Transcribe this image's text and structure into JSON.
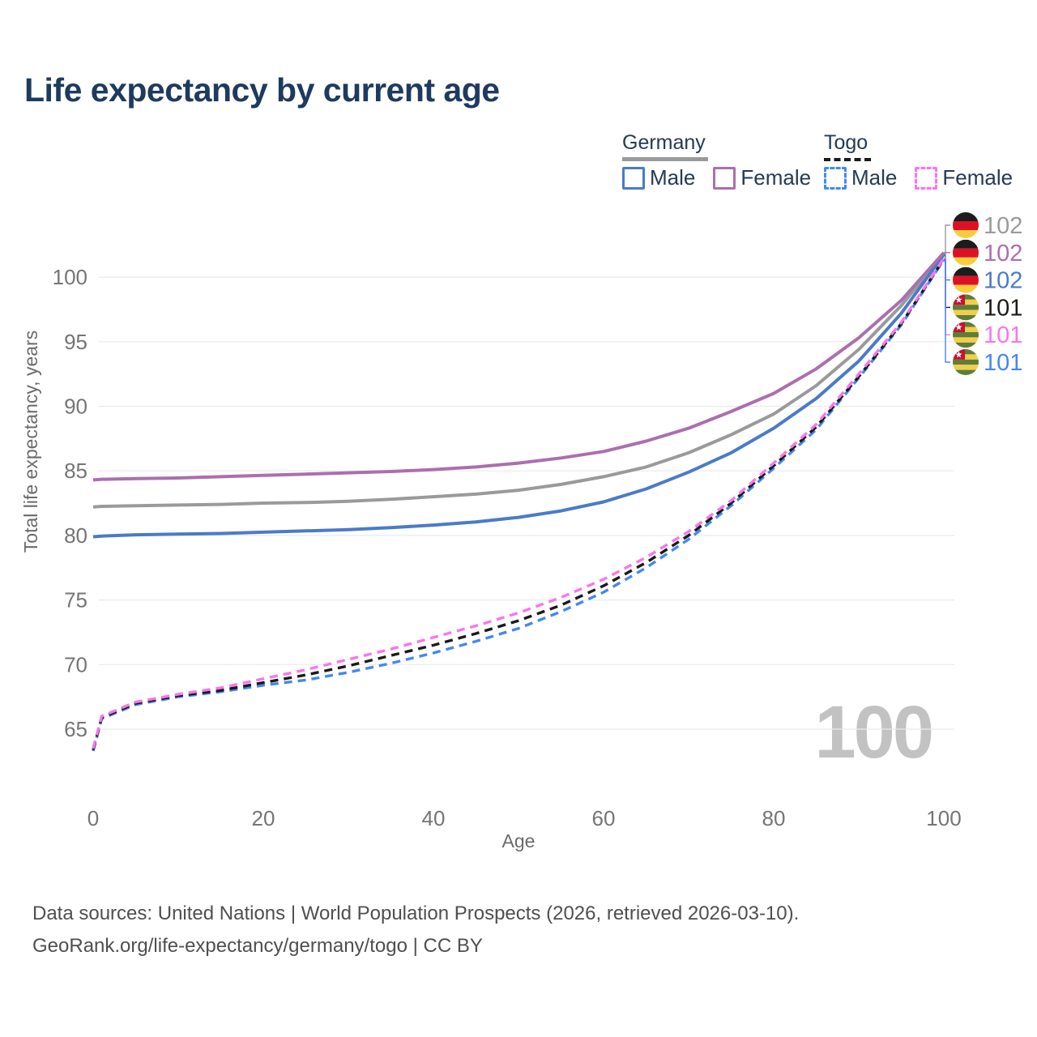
{
  "title": "Life expectancy by current age",
  "legend": {
    "groups": [
      {
        "label": "Germany",
        "style": "solid",
        "items": [
          {
            "label": "Male"
          },
          {
            "label": "Female"
          }
        ]
      },
      {
        "label": "Togo",
        "style": "dashed",
        "items": [
          {
            "label": "Male"
          },
          {
            "label": "Female"
          }
        ]
      }
    ]
  },
  "axes": {
    "x": {
      "label": "Age",
      "ticks": [
        0,
        20,
        40,
        60,
        80,
        100
      ],
      "range": [
        0,
        100
      ]
    },
    "y": {
      "label": "Total life expectancy, years",
      "ticks": [
        65,
        70,
        75,
        80,
        85,
        90,
        95,
        100
      ],
      "range": [
        62.5,
        103
      ]
    }
  },
  "watermark": "100",
  "chart_data": {
    "type": "line",
    "title": "Life expectancy by current age",
    "xlabel": "Age",
    "ylabel": "Total life expectancy, years",
    "x": [
      0,
      1,
      5,
      10,
      15,
      20,
      25,
      30,
      35,
      40,
      45,
      50,
      55,
      60,
      65,
      70,
      75,
      80,
      85,
      90,
      95,
      100
    ],
    "series": [
      {
        "id": "germany-all",
        "name": "Germany (both sexes)",
        "country": "Germany",
        "flag": "de",
        "color": "#9a9a9a",
        "dashed": false,
        "end_label": "102",
        "values": [
          82.2,
          82.25,
          82.3,
          82.35,
          82.4,
          82.5,
          82.55,
          82.65,
          82.8,
          83.0,
          83.2,
          83.5,
          83.95,
          84.55,
          85.3,
          86.4,
          87.8,
          89.4,
          91.6,
          94.4,
          97.8,
          101.85
        ]
      },
      {
        "id": "germany-female",
        "name": "Germany Female",
        "country": "Germany",
        "flag": "de",
        "color": "#ab6fae",
        "dashed": false,
        "end_label": "102",
        "values": [
          84.3,
          84.35,
          84.4,
          84.45,
          84.55,
          84.65,
          84.75,
          84.85,
          84.95,
          85.1,
          85.3,
          85.6,
          86.0,
          86.5,
          87.3,
          88.3,
          89.6,
          91.0,
          92.9,
          95.3,
          98.2,
          101.9
        ]
      },
      {
        "id": "germany-male",
        "name": "Germany Male",
        "country": "Germany",
        "flag": "de",
        "color": "#4a7bc8",
        "dashed": false,
        "end_label": "102",
        "values": [
          79.9,
          79.95,
          80.05,
          80.1,
          80.15,
          80.25,
          80.35,
          80.45,
          80.6,
          80.8,
          81.05,
          81.4,
          81.9,
          82.6,
          83.6,
          84.9,
          86.4,
          88.3,
          90.6,
          93.5,
          97.2,
          101.75
        ]
      },
      {
        "id": "togo-all",
        "name": "Togo (both sexes)",
        "country": "Togo",
        "flag": "tg",
        "color": "#1a1a1a",
        "dashed": true,
        "end_label": "101",
        "values": [
          63.4,
          65.9,
          67.0,
          67.6,
          68.0,
          68.6,
          69.2,
          69.9,
          70.7,
          71.5,
          72.4,
          73.4,
          74.6,
          76.1,
          77.9,
          80.0,
          82.5,
          85.4,
          88.4,
          92.3,
          96.4,
          101.4
        ]
      },
      {
        "id": "togo-female",
        "name": "Togo Female",
        "country": "Togo",
        "flag": "tg",
        "color": "#fb74ee",
        "dashed": true,
        "end_label": "101",
        "values": [
          63.5,
          66.0,
          67.1,
          67.7,
          68.2,
          68.9,
          69.6,
          70.4,
          71.2,
          72.1,
          73.0,
          74.0,
          75.2,
          76.6,
          78.3,
          80.3,
          82.7,
          85.6,
          88.6,
          92.5,
          96.5,
          101.45
        ]
      },
      {
        "id": "togo-male",
        "name": "Togo Male",
        "country": "Togo",
        "flag": "tg",
        "color": "#4488f0",
        "dashed": true,
        "end_label": "101",
        "values": [
          63.3,
          65.8,
          66.9,
          67.5,
          67.9,
          68.4,
          68.8,
          69.4,
          70.1,
          70.9,
          71.8,
          72.8,
          74.1,
          75.6,
          77.5,
          79.7,
          82.3,
          85.2,
          88.2,
          92.2,
          96.3,
          101.35
        ]
      }
    ]
  },
  "sources": {
    "line1": "Data sources: United Nations | World Population Prospects (2026, retrieved 2026-03-10).",
    "line2": "GeoRank.org/life-expectancy/germany/togo | CC BY"
  }
}
